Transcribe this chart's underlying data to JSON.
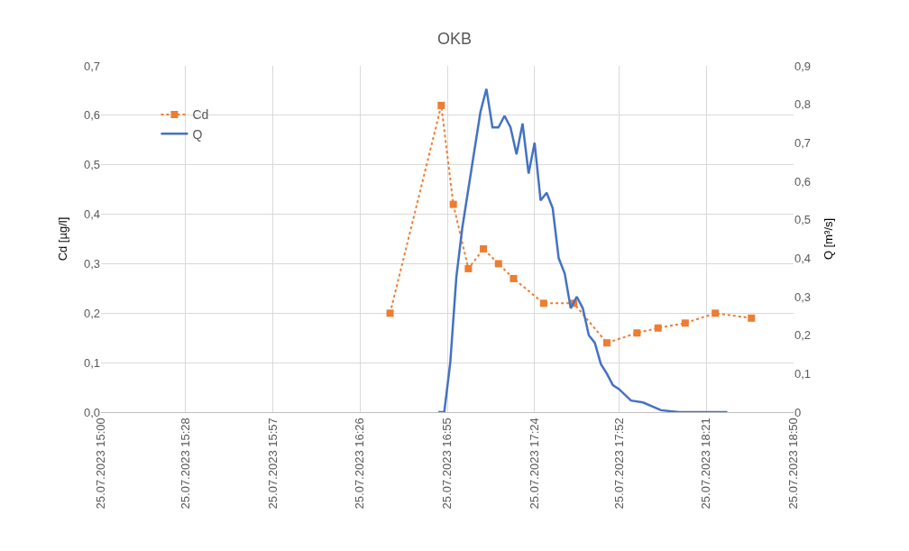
{
  "chart_data": {
    "type": "line",
    "title": "OKB",
    "ylabel": "Cd [µg/l]",
    "y2label": "Q [m³/s]",
    "xlim": [
      "2023-07-25T15:00",
      "2023-07-25T18:50"
    ],
    "xticks": [
      {
        "value": "2023-07-25T15:00",
        "label": "25.07.2023 15:00"
      },
      {
        "value": "2023-07-25T15:28",
        "label": "25.07.2023 15:28"
      },
      {
        "value": "2023-07-25T15:57",
        "label": "25.07.2023 15:57"
      },
      {
        "value": "2023-07-25T16:26",
        "label": "25.07.2023 16:26"
      },
      {
        "value": "2023-07-25T16:55",
        "label": "25.07.2023 16:55"
      },
      {
        "value": "2023-07-25T17:24",
        "label": "25.07.2023 17:24"
      },
      {
        "value": "2023-07-25T17:52",
        "label": "25.07.2023 17:52"
      },
      {
        "value": "2023-07-25T18:21",
        "label": "25.07.2023 18:21"
      },
      {
        "value": "2023-07-25T18:50",
        "label": "25.07.2023 18:50"
      }
    ],
    "ylim": [
      0,
      0.7
    ],
    "yticks": [
      {
        "value": 0,
        "label": "0,0"
      },
      {
        "value": 0.1,
        "label": "0,1"
      },
      {
        "value": 0.2,
        "label": "0,2"
      },
      {
        "value": 0.3,
        "label": "0,3"
      },
      {
        "value": 0.4,
        "label": "0,4"
      },
      {
        "value": 0.5,
        "label": "0,5"
      },
      {
        "value": 0.6,
        "label": "0,6"
      },
      {
        "value": 0.7,
        "label": "0,7"
      }
    ],
    "y2lim": [
      0,
      0.9
    ],
    "y2ticks": [
      {
        "value": 0,
        "label": "0"
      },
      {
        "value": 0.1,
        "label": "0,1"
      },
      {
        "value": 0.2,
        "label": "0,2"
      },
      {
        "value": 0.3,
        "label": "0,3"
      },
      {
        "value": 0.4,
        "label": "0,4"
      },
      {
        "value": 0.5,
        "label": "0,5"
      },
      {
        "value": 0.6,
        "label": "0,6"
      },
      {
        "value": 0.7,
        "label": "0,7"
      },
      {
        "value": 0.8,
        "label": "0,8"
      },
      {
        "value": 0.9,
        "label": "0,9"
      }
    ],
    "grid": true,
    "legend": "top left",
    "series": [
      {
        "name": "Cd",
        "color": "#ed7d31",
        "marker": "square",
        "line_style": "dotted",
        "x": [
          "2023-07-25T16:36",
          "2023-07-25T16:53",
          "2023-07-25T16:57",
          "2023-07-25T17:02",
          "2023-07-25T17:07",
          "2023-07-25T17:12",
          "2023-07-25T17:17",
          "2023-07-25T17:27",
          "2023-07-25T17:37",
          "2023-07-25T17:48",
          "2023-07-25T17:58",
          "2023-07-25T18:05",
          "2023-07-25T18:14",
          "2023-07-25T18:24",
          "2023-07-25T18:36"
        ],
        "values": [
          0.2,
          0.62,
          0.42,
          0.29,
          0.33,
          0.3,
          0.27,
          0.22,
          0.22,
          0.14,
          0.16,
          0.17,
          0.18,
          0.2,
          0.19
        ]
      },
      {
        "name": "Q",
        "color": "#4472c4",
        "marker": "none",
        "line_style": "solid",
        "axis": "y2",
        "x": [
          "2023-07-25T16:52",
          "2023-07-25T16:54",
          "2023-07-25T16:56",
          "2023-07-25T16:58",
          "2023-07-25T17:00",
          "2023-07-25T17:03",
          "2023-07-25T17:06",
          "2023-07-25T17:08",
          "2023-07-25T17:10",
          "2023-07-25T17:12",
          "2023-07-25T17:14",
          "2023-07-25T17:16",
          "2023-07-25T17:18",
          "2023-07-25T17:20",
          "2023-07-25T17:22",
          "2023-07-25T17:24",
          "2023-07-25T17:26",
          "2023-07-25T17:28",
          "2023-07-25T17:30",
          "2023-07-25T17:32",
          "2023-07-25T17:34",
          "2023-07-25T17:36",
          "2023-07-25T17:38",
          "2023-07-25T17:40",
          "2023-07-25T17:42",
          "2023-07-25T17:44",
          "2023-07-25T17:46",
          "2023-07-25T17:48",
          "2023-07-25T17:50",
          "2023-07-25T17:52",
          "2023-07-25T17:56",
          "2023-07-25T18:00",
          "2023-07-25T18:06",
          "2023-07-25T18:12",
          "2023-07-25T18:28"
        ],
        "values": [
          0,
          0,
          0.13,
          0.35,
          0.48,
          0.63,
          0.78,
          0.84,
          0.74,
          0.74,
          0.77,
          0.74,
          0.67,
          0.75,
          0.62,
          0.7,
          0.55,
          0.57,
          0.53,
          0.4,
          0.36,
          0.27,
          0.3,
          0.27,
          0.2,
          0.18,
          0.125,
          0.1,
          0.07,
          0.06,
          0.03,
          0.025,
          0.005,
          0,
          0
        ]
      }
    ]
  }
}
